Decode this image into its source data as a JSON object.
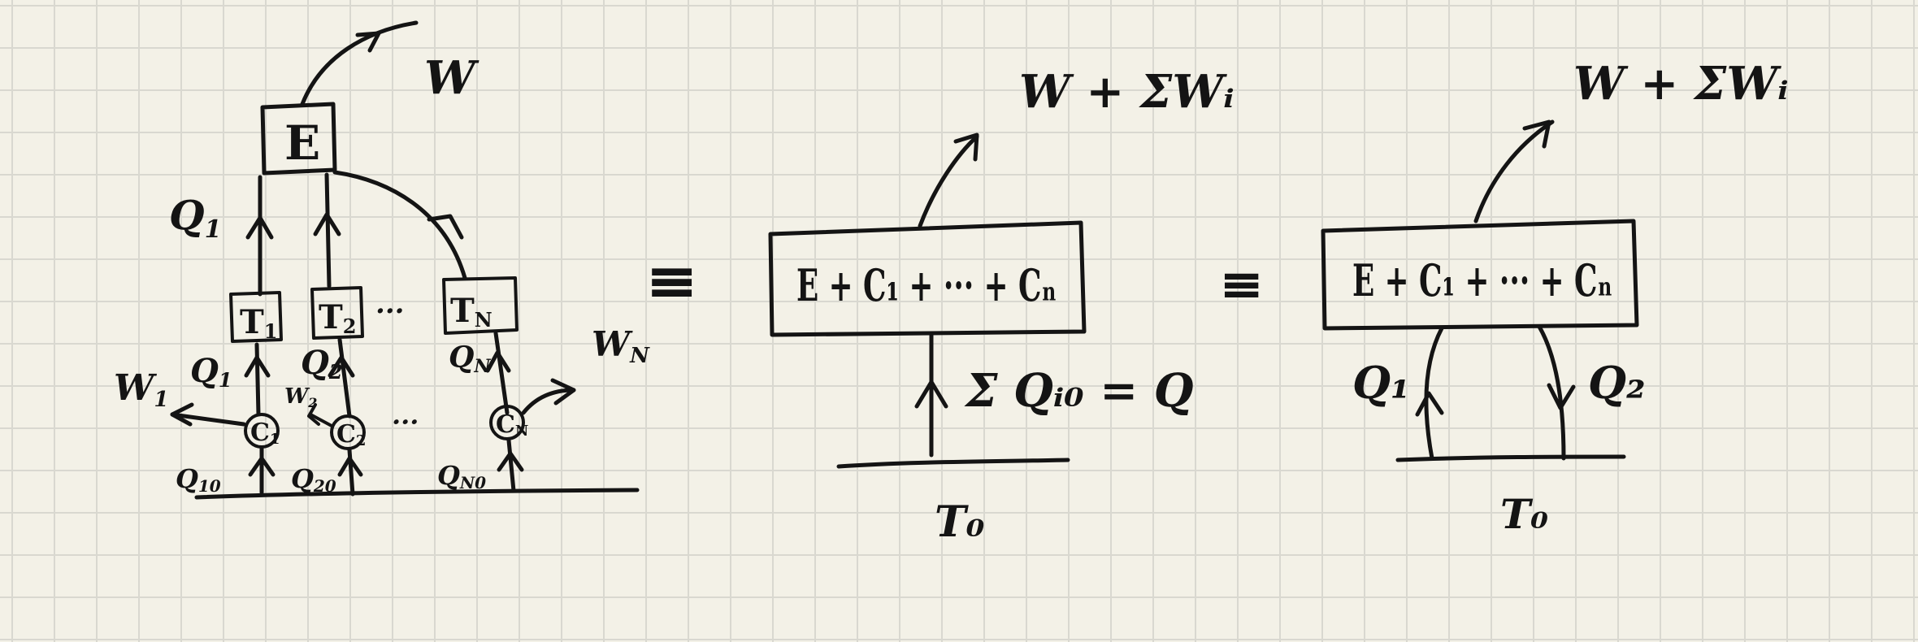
{
  "left_system": {
    "engine_label": "E",
    "work_out": "W",
    "heat_to_engine": "Q",
    "heat_to_engine_sub": "1",
    "reservoirs": [
      {
        "label": "T",
        "sub": "1"
      },
      {
        "label": "T",
        "sub": "2"
      },
      {
        "label": "T",
        "sub": "N"
      }
    ],
    "reservoir_dots": "···",
    "cyclic_devices": [
      {
        "label": "C",
        "sub": "1"
      },
      {
        "label": "C",
        "sub": "2"
      },
      {
        "label": "C",
        "sub": "N"
      }
    ],
    "device_dots": "···",
    "device_heat_out": [
      {
        "label": "Q",
        "sub": "1"
      },
      {
        "label": "Q",
        "sub": "2"
      },
      {
        "label": "Q",
        "sub": "N"
      }
    ],
    "device_work": [
      {
        "label": "W",
        "sub": "1"
      },
      {
        "label": "W",
        "sub": "2"
      },
      {
        "label": "W",
        "sub": "N"
      }
    ],
    "device_heat_in": [
      {
        "label": "Q",
        "sub": "10"
      },
      {
        "label": "Q",
        "sub": "20"
      },
      {
        "label": "Q",
        "sub": "N0"
      }
    ]
  },
  "equiv_symbol": "≡",
  "middle_system": {
    "box_label": "E + C₁ + ··· + Cₙ",
    "work_out": "W + ΣWᵢ",
    "heat_in": "Σ Qᵢ₀ = Q",
    "reservoir": "T₀"
  },
  "right_system": {
    "box_label": "E + C₁ + ··· + Cₙ",
    "work_out": "W + ΣWᵢ",
    "heat_in": "Q₁",
    "heat_out": "Q₂",
    "reservoir": "T₀"
  }
}
